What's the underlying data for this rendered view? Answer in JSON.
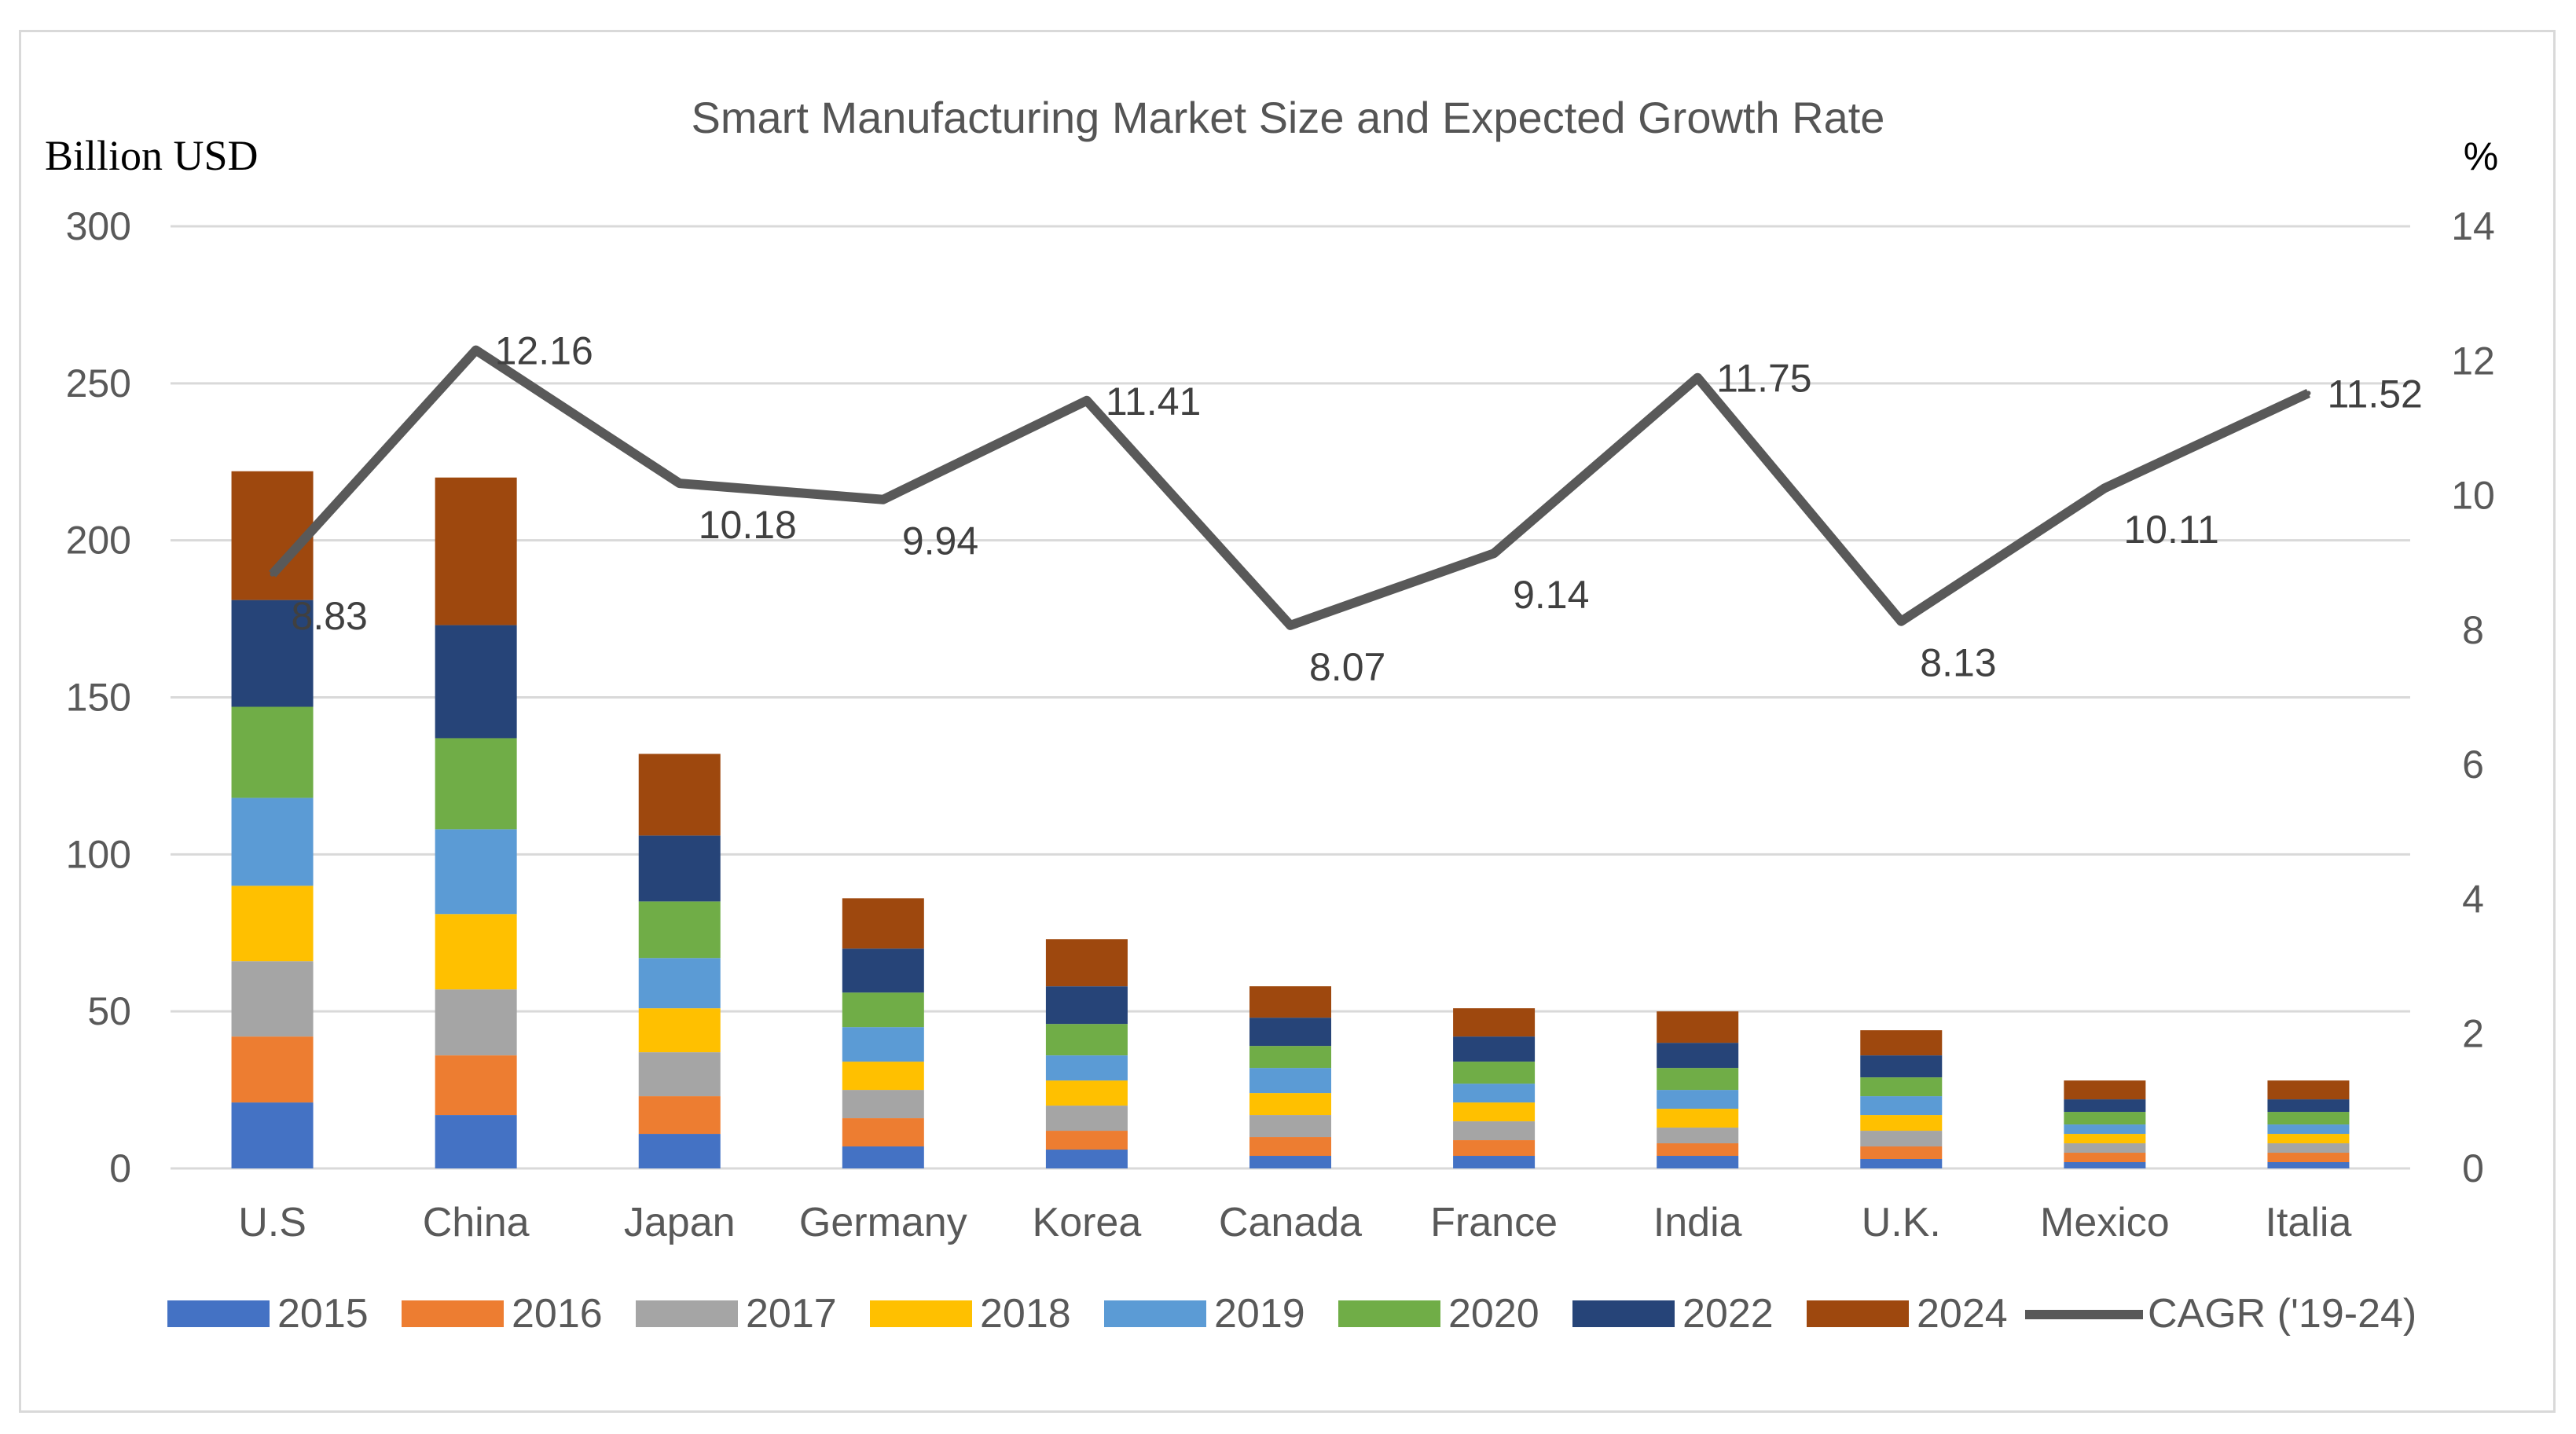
{
  "chart_data": {
    "type": "bar",
    "subtype": "stacked-bar-with-line",
    "title": "Smart Manufacturing Market Size and Expected Growth Rate",
    "ylabel_left": "Billion USD",
    "ylabel_right": "%",
    "ylim_left": [
      0,
      300
    ],
    "yticks_left": [
      "0",
      "50",
      "100",
      "150",
      "200",
      "250",
      "300"
    ],
    "ylim_right": [
      0,
      14
    ],
    "yticks_right": [
      "0",
      "2",
      "4",
      "6",
      "8",
      "10",
      "12",
      "14"
    ],
    "grid": true,
    "legend_position": "bottom",
    "categories": [
      "U.S",
      "China",
      "Japan",
      "Germany",
      "Korea",
      "Canada",
      "France",
      "India",
      "U.K.",
      "Mexico",
      "Italia"
    ],
    "series": [
      {
        "name": "2015",
        "color": "#4472c4",
        "values": [
          21,
          17,
          11,
          7,
          6,
          4,
          4,
          4,
          3,
          2,
          2
        ]
      },
      {
        "name": "2016",
        "color": "#ed7d31",
        "values": [
          21,
          19,
          12,
          9,
          6,
          6,
          5,
          4,
          4,
          3,
          3
        ]
      },
      {
        "name": "2017",
        "color": "#a5a5a5",
        "values": [
          24,
          21,
          14,
          9,
          8,
          7,
          6,
          5,
          5,
          3,
          3
        ]
      },
      {
        "name": "2018",
        "color": "#ffc000",
        "values": [
          24,
          24,
          14,
          9,
          8,
          7,
          6,
          6,
          5,
          3,
          3
        ]
      },
      {
        "name": "2019",
        "color": "#5b9bd5",
        "values": [
          28,
          27,
          16,
          11,
          8,
          8,
          6,
          6,
          6,
          3,
          3
        ]
      },
      {
        "name": "2020",
        "color": "#70ad47",
        "values": [
          29,
          29,
          18,
          11,
          10,
          7,
          7,
          7,
          6,
          4,
          4
        ]
      },
      {
        "name": "2022",
        "color": "#264478",
        "values": [
          34,
          36,
          21,
          14,
          12,
          9,
          8,
          8,
          7,
          4,
          4
        ]
      },
      {
        "name": "2024",
        "color": "#9e480e",
        "values": [
          41,
          47,
          26,
          16,
          15,
          10,
          9,
          10,
          8,
          6,
          6
        ]
      }
    ],
    "line_series": {
      "name": "CAGR ('19-24)",
      "color": "#595959",
      "axis": "right",
      "values": [
        8.83,
        12.16,
        10.18,
        9.94,
        11.41,
        8.07,
        9.14,
        11.75,
        8.13,
        10.11,
        11.52
      ],
      "labels": [
        "8.83",
        "12.16",
        "10.18",
        "9.94",
        "11.41",
        "8.07",
        "9.14",
        "11.75",
        "8.13",
        "10.11",
        "11.52"
      ]
    }
  }
}
